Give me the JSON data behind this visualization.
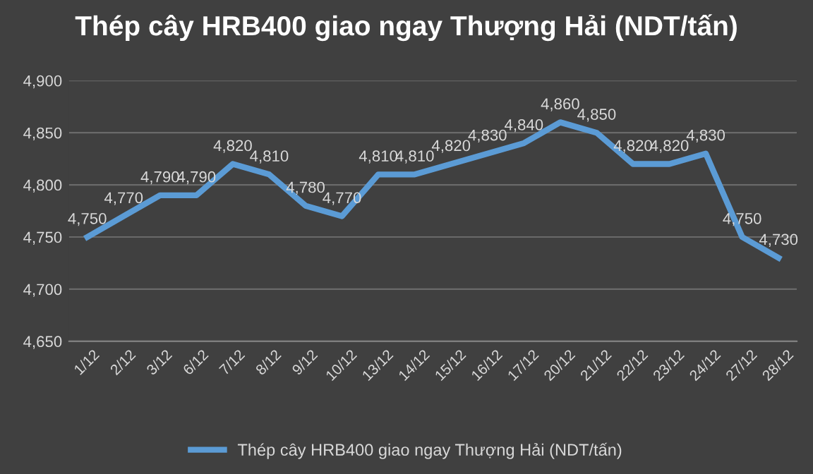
{
  "chart_data": {
    "type": "line",
    "title": "Thép cây HRB400 giao ngay Thượng Hải (NDT/tấn)",
    "categories": [
      "1/12",
      "2/12",
      "3/12",
      "6/12",
      "7/12",
      "8/12",
      "9/12",
      "10/12",
      "13/12",
      "14/12",
      "15/12",
      "16/12",
      "17/12",
      "20/12",
      "21/12",
      "22/12",
      "23/12",
      "24/12",
      "27/12",
      "28/12"
    ],
    "series": [
      {
        "name": "Thép cây HRB400 giao ngay Thượng Hải (NDT/tấn)",
        "color": "#5b9bd5",
        "values": [
          4750,
          4770,
          4790,
          4790,
          4820,
          4810,
          4780,
          4770,
          4810,
          4810,
          4820,
          4830,
          4840,
          4860,
          4850,
          4820,
          4820,
          4830,
          4750,
          4730
        ],
        "value_labels": [
          "4,750",
          "4,770",
          "4,790",
          "4,790",
          "4,820",
          "4,810",
          "4,780",
          "4,770",
          "4,810",
          "4,810",
          "4,820",
          "4,830",
          "4,840",
          "4,860",
          "4,850",
          "4,820",
          "4,820",
          "4,830",
          "4,750",
          "4,730"
        ]
      }
    ],
    "ylim": [
      4650,
      4900
    ],
    "yticks": [
      {
        "value": 4650,
        "label": "4,650"
      },
      {
        "value": 4700,
        "label": "4,700"
      },
      {
        "value": 4750,
        "label": "4,750"
      },
      {
        "value": 4800,
        "label": "4,800"
      },
      {
        "value": 4850,
        "label": "4,850"
      },
      {
        "value": 4900,
        "label": "4,900"
      }
    ],
    "grid": "y",
    "legend": "bottom",
    "marker": "none",
    "line_style": "solid"
  }
}
